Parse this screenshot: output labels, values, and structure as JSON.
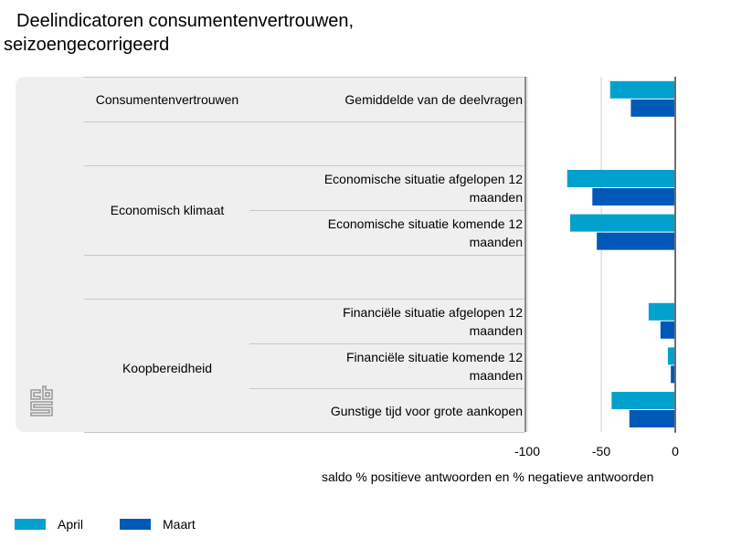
{
  "title": {
    "line1": "Deelindicatoren consumentenvertrouwen,",
    "line2": "seizoengecorrigeerd"
  },
  "colors": {
    "April": "#00a1cd",
    "Maart": "#0058b8",
    "panel": "#efefef",
    "axis": "#6e6e6e",
    "grid": "#d0d0d0"
  },
  "logo": {
    "icon": "cbs-logo-icon",
    "text": "cbs"
  },
  "groups": [
    {
      "label": "Consumentenvertrouwen"
    },
    {
      "label": "Economisch klimaat"
    },
    {
      "label": "Koopbereidheid"
    }
  ],
  "chart_data": {
    "type": "bar",
    "orientation": "horizontal",
    "categories": [
      "Gemiddelde van de deelvragen",
      "",
      "Economische situatie afgelopen 12 maanden",
      "Economische situatie komende 12 maanden",
      "",
      "Financiële situatie afgelopen 12 maanden",
      "Financiële situatie komende 12 maanden",
      "Gunstige tijd voor grote aankopen"
    ],
    "category_lines": [
      [
        "Gemiddelde van de deelvragen"
      ],
      [],
      [
        "Economische situatie afgelopen 12",
        "maanden"
      ],
      [
        "Economische situatie komende 12",
        "maanden"
      ],
      [],
      [
        "Financiële situatie afgelopen 12",
        "maanden"
      ],
      [
        "Financiële situatie komende 12",
        "maanden"
      ],
      [
        "Gunstige tijd voor grote aankopen"
      ]
    ],
    "series": [
      {
        "name": "April",
        "values": [
          -44,
          null,
          -73,
          -71,
          null,
          -18,
          -5,
          -43
        ]
      },
      {
        "name": "Maart",
        "values": [
          -30,
          null,
          -56,
          -53,
          null,
          -10,
          -3,
          -31
        ]
      }
    ],
    "xlim": [
      -100,
      0
    ],
    "xticks": [
      -100,
      -50,
      0
    ],
    "xtick_labels": [
      "-100",
      "-50",
      "0"
    ],
    "xlabel": "saldo % positieve antwoorden en % negatieve antwoorden",
    "ylabel": "",
    "grid": true,
    "legend": "bottom-left"
  }
}
